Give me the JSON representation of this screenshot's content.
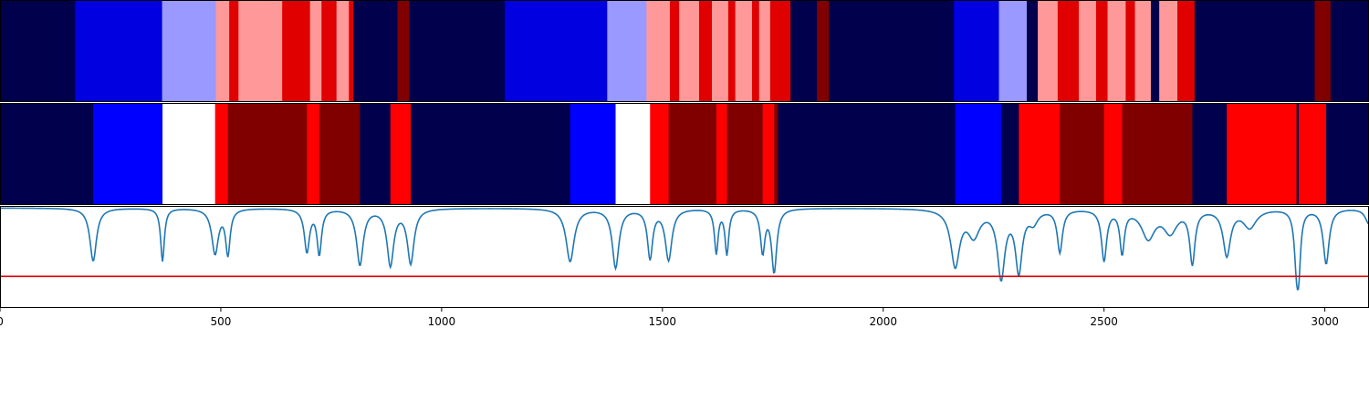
{
  "chart_data": {
    "type": "heatmap",
    "x_range": [
      0,
      3100
    ],
    "x_ticks": [
      {
        "value": 0,
        "label": "0"
      },
      {
        "value": 500,
        "label": "500"
      },
      {
        "value": 1000,
        "label": "1000"
      },
      {
        "value": 1500,
        "label": "1500"
      },
      {
        "value": 2000,
        "label": "2000"
      },
      {
        "value": 2500,
        "label": "2500"
      },
      {
        "value": 3000,
        "label": "3000"
      }
    ],
    "colors": {
      "navy": "#00004c",
      "blue": "#0000e0",
      "bright_blue": "#0000ff",
      "light_blue": "#9999ff",
      "white": "#ffffff",
      "light_red": "#ff9999",
      "red": "#e00000",
      "bright_red": "#ff0000",
      "dark_red": "#800000",
      "line": "#1f77b4",
      "threshold": "#e00000"
    },
    "band_top": [
      {
        "start": 0,
        "end": 170,
        "color": "navy"
      },
      {
        "start": 170,
        "end": 367,
        "color": "blue"
      },
      {
        "start": 367,
        "end": 489,
        "color": "light_blue"
      },
      {
        "start": 489,
        "end": 519,
        "color": "light_red"
      },
      {
        "start": 519,
        "end": 540,
        "color": "red"
      },
      {
        "start": 540,
        "end": 639,
        "color": "light_red"
      },
      {
        "start": 639,
        "end": 702,
        "color": "red"
      },
      {
        "start": 702,
        "end": 728,
        "color": "light_red"
      },
      {
        "start": 728,
        "end": 762,
        "color": "red"
      },
      {
        "start": 762,
        "end": 790,
        "color": "light_red"
      },
      {
        "start": 790,
        "end": 800,
        "color": "red"
      },
      {
        "start": 800,
        "end": 900,
        "color": "navy"
      },
      {
        "start": 900,
        "end": 927,
        "color": "dark_red"
      },
      {
        "start": 927,
        "end": 1143,
        "color": "navy"
      },
      {
        "start": 1143,
        "end": 1375,
        "color": "blue"
      },
      {
        "start": 1375,
        "end": 1464,
        "color": "light_blue"
      },
      {
        "start": 1464,
        "end": 1517,
        "color": "light_red"
      },
      {
        "start": 1517,
        "end": 1538,
        "color": "red"
      },
      {
        "start": 1538,
        "end": 1583,
        "color": "light_red"
      },
      {
        "start": 1583,
        "end": 1612,
        "color": "red"
      },
      {
        "start": 1612,
        "end": 1649,
        "color": "light_red"
      },
      {
        "start": 1649,
        "end": 1665,
        "color": "red"
      },
      {
        "start": 1665,
        "end": 1703,
        "color": "light_red"
      },
      {
        "start": 1703,
        "end": 1719,
        "color": "red"
      },
      {
        "start": 1719,
        "end": 1744,
        "color": "light_red"
      },
      {
        "start": 1744,
        "end": 1790,
        "color": "red"
      },
      {
        "start": 1790,
        "end": 1850,
        "color": "navy"
      },
      {
        "start": 1850,
        "end": 1877,
        "color": "dark_red"
      },
      {
        "start": 1877,
        "end": 2160,
        "color": "navy"
      },
      {
        "start": 2160,
        "end": 2262,
        "color": "blue"
      },
      {
        "start": 2262,
        "end": 2325,
        "color": "light_blue"
      },
      {
        "start": 2325,
        "end": 2350,
        "color": "navy"
      },
      {
        "start": 2350,
        "end": 2395,
        "color": "light_red"
      },
      {
        "start": 2395,
        "end": 2443,
        "color": "red"
      },
      {
        "start": 2443,
        "end": 2482,
        "color": "light_red"
      },
      {
        "start": 2482,
        "end": 2508,
        "color": "red"
      },
      {
        "start": 2508,
        "end": 2549,
        "color": "light_red"
      },
      {
        "start": 2549,
        "end": 2570,
        "color": "red"
      },
      {
        "start": 2570,
        "end": 2606,
        "color": "light_red"
      },
      {
        "start": 2606,
        "end": 2625,
        "color": "navy"
      },
      {
        "start": 2625,
        "end": 2666,
        "color": "light_red"
      },
      {
        "start": 2666,
        "end": 2705,
        "color": "red"
      },
      {
        "start": 2705,
        "end": 2977,
        "color": "navy"
      },
      {
        "start": 2977,
        "end": 3013,
        "color": "dark_red"
      },
      {
        "start": 3013,
        "end": 3100,
        "color": "navy"
      }
    ],
    "band_middle": [
      {
        "start": 0,
        "end": 211,
        "color": "navy"
      },
      {
        "start": 211,
        "end": 368,
        "color": "bright_blue"
      },
      {
        "start": 368,
        "end": 487,
        "color": "white"
      },
      {
        "start": 487,
        "end": 516,
        "color": "bright_red"
      },
      {
        "start": 516,
        "end": 695,
        "color": "dark_red"
      },
      {
        "start": 695,
        "end": 723,
        "color": "bright_red"
      },
      {
        "start": 723,
        "end": 815,
        "color": "dark_red"
      },
      {
        "start": 815,
        "end": 884,
        "color": "navy"
      },
      {
        "start": 884,
        "end": 930,
        "color": "bright_red"
      },
      {
        "start": 930,
        "end": 1291,
        "color": "navy"
      },
      {
        "start": 1291,
        "end": 1394,
        "color": "bright_blue"
      },
      {
        "start": 1394,
        "end": 1472,
        "color": "white"
      },
      {
        "start": 1472,
        "end": 1514,
        "color": "bright_red"
      },
      {
        "start": 1514,
        "end": 1622,
        "color": "dark_red"
      },
      {
        "start": 1622,
        "end": 1646,
        "color": "bright_red"
      },
      {
        "start": 1646,
        "end": 1727,
        "color": "dark_red"
      },
      {
        "start": 1727,
        "end": 1753,
        "color": "bright_red"
      },
      {
        "start": 1753,
        "end": 1762,
        "color": "dark_red"
      },
      {
        "start": 1762,
        "end": 2163,
        "color": "navy"
      },
      {
        "start": 2163,
        "end": 2267,
        "color": "bright_blue"
      },
      {
        "start": 2267,
        "end": 2307,
        "color": "navy"
      },
      {
        "start": 2307,
        "end": 2400,
        "color": "bright_red"
      },
      {
        "start": 2400,
        "end": 2500,
        "color": "dark_red"
      },
      {
        "start": 2500,
        "end": 2541,
        "color": "bright_red"
      },
      {
        "start": 2541,
        "end": 2700,
        "color": "dark_red"
      },
      {
        "start": 2700,
        "end": 2778,
        "color": "navy"
      },
      {
        "start": 2778,
        "end": 2936,
        "color": "bright_red"
      },
      {
        "start": 2936,
        "end": 2941,
        "color": "navy"
      },
      {
        "start": 2941,
        "end": 3003,
        "color": "bright_red"
      },
      {
        "start": 3003,
        "end": 3100,
        "color": "navy"
      }
    ],
    "line_panel": {
      "y_range": [
        0,
        1
      ],
      "baseline": 0.98,
      "threshold": 0.31,
      "dips": [
        {
          "x": 211,
          "depth": 0.52,
          "width": 9
        },
        {
          "x": 368,
          "depth": 0.52,
          "width": 5
        },
        {
          "x": 487,
          "depth": 0.44,
          "width": 9
        },
        {
          "x": 516,
          "depth": 0.44,
          "width": 6
        },
        {
          "x": 695,
          "depth": 0.42,
          "width": 7
        },
        {
          "x": 723,
          "depth": 0.44,
          "width": 6
        },
        {
          "x": 815,
          "depth": 0.55,
          "width": 9
        },
        {
          "x": 884,
          "depth": 0.55,
          "width": 9
        },
        {
          "x": 930,
          "depth": 0.53,
          "width": 9
        },
        {
          "x": 1291,
          "depth": 0.52,
          "width": 11
        },
        {
          "x": 1394,
          "depth": 0.58,
          "width": 9
        },
        {
          "x": 1472,
          "depth": 0.48,
          "width": 7
        },
        {
          "x": 1514,
          "depth": 0.5,
          "width": 9
        },
        {
          "x": 1622,
          "depth": 0.43,
          "width": 5
        },
        {
          "x": 1646,
          "depth": 0.44,
          "width": 5
        },
        {
          "x": 1727,
          "depth": 0.42,
          "width": 6
        },
        {
          "x": 1753,
          "depth": 0.62,
          "width": 7
        },
        {
          "x": 2163,
          "depth": 0.55,
          "width": 12
        },
        {
          "x": 2205,
          "depth": 0.25,
          "width": 16
        },
        {
          "x": 2267,
          "depth": 0.66,
          "width": 10
        },
        {
          "x": 2307,
          "depth": 0.6,
          "width": 9
        },
        {
          "x": 2340,
          "depth": 0.12,
          "width": 12
        },
        {
          "x": 2400,
          "depth": 0.42,
          "width": 7
        },
        {
          "x": 2500,
          "depth": 0.5,
          "width": 7
        },
        {
          "x": 2541,
          "depth": 0.42,
          "width": 6
        },
        {
          "x": 2600,
          "depth": 0.28,
          "width": 18
        },
        {
          "x": 2650,
          "depth": 0.22,
          "width": 18
        },
        {
          "x": 2700,
          "depth": 0.52,
          "width": 7
        },
        {
          "x": 2778,
          "depth": 0.45,
          "width": 10
        },
        {
          "x": 2830,
          "depth": 0.18,
          "width": 18
        },
        {
          "x": 2936,
          "depth": 0.5,
          "width": 6
        },
        {
          "x": 2941,
          "depth": 0.45,
          "width": 5
        },
        {
          "x": 3003,
          "depth": 0.54,
          "width": 8
        },
        {
          "x": 3100,
          "depth": 0.15,
          "width": 10
        }
      ]
    }
  }
}
